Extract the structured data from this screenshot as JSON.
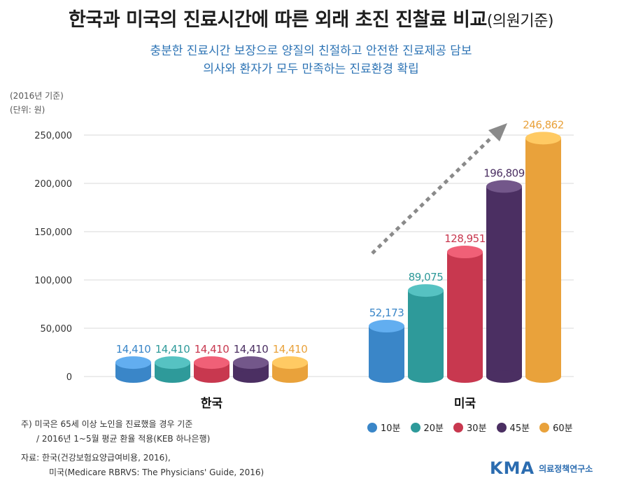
{
  "header": {
    "title": "한국과 미국의 진료시간에 따른 외래 초진 진찰료 비교",
    "title_paren": "(의원기준)",
    "subtitle_line1": "충분한 진료시간 보장으로 양질의 친절하고 안전한 진료제공 담보",
    "subtitle_line2": "의사와 환자가 모두 만족하는 진료환경 확립",
    "base_year": "(2016년 기준)",
    "unit": "(단위: 원)"
  },
  "chart_data": {
    "type": "bar",
    "categories": [
      "한국",
      "미국"
    ],
    "series": [
      {
        "name": "10분",
        "values": [
          14410,
          52173
        ],
        "labels": [
          "14,410",
          "52,173"
        ],
        "color": "#3a86c8"
      },
      {
        "name": "20분",
        "values": [
          14410,
          89075
        ],
        "labels": [
          "14,410",
          "89,075"
        ],
        "color": "#2e9a9a"
      },
      {
        "name": "30분",
        "values": [
          14410,
          128951
        ],
        "labels": [
          "14,410",
          "128,951"
        ],
        "color": "#c8384f"
      },
      {
        "name": "45분",
        "values": [
          14410,
          196809
        ],
        "labels": [
          "14,410",
          "196,809"
        ],
        "color": "#4b2f62"
      },
      {
        "name": "60분",
        "values": [
          14410,
          246862
        ],
        "labels": [
          "14,410",
          "246,862"
        ],
        "color": "#e9a23b"
      }
    ],
    "ylim": [
      0,
      250000
    ],
    "yticks": [
      0,
      50000,
      100000,
      150000,
      200000,
      250000
    ],
    "ytick_labels": [
      "0",
      "50,000",
      "100,000",
      "150,000",
      "200,000",
      "250,000"
    ],
    "grid": true,
    "legend_position": "bottom-right"
  },
  "notes": {
    "note1": "주) 미국은 65세 이상 노인을 진료했을 경우 기준",
    "note2": "/ 2016년 1~5월 평균 환율 적용(KEB 하나은행)",
    "source1": "자료: 한국(건강보험요양급여비용, 2016),",
    "source2": "미국(Medicare RBRVS: The Physicians' Guide, 2016)"
  },
  "logo": {
    "mark": "KMA",
    "text": "의료정책연구소"
  }
}
